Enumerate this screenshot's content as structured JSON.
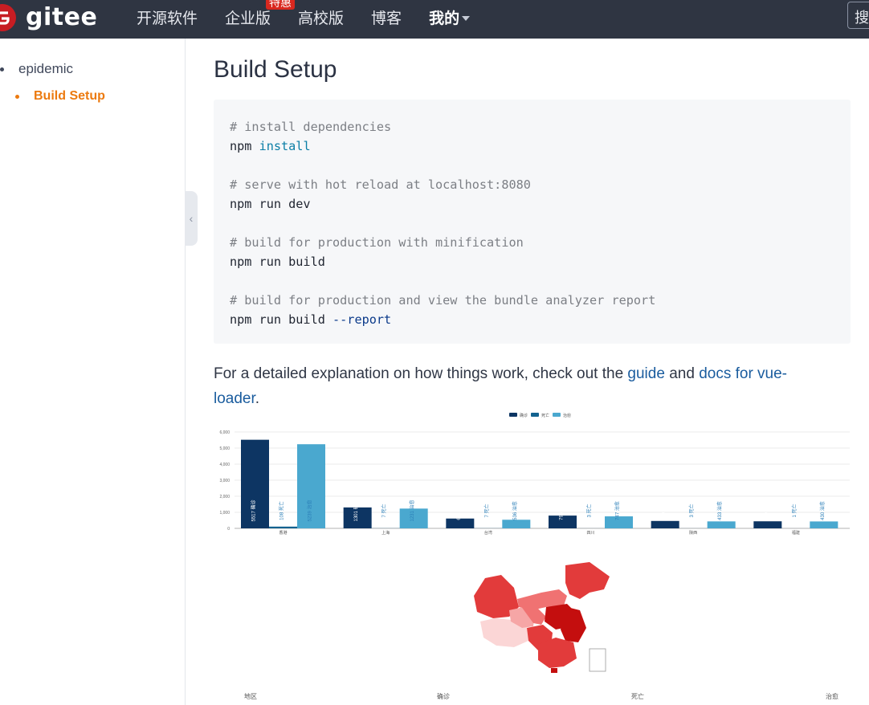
{
  "header": {
    "logo_text": "gitee",
    "nav": [
      {
        "label": "开源软件",
        "bold": false,
        "badge": ""
      },
      {
        "label": "企业版",
        "bold": false,
        "badge": "特惠"
      },
      {
        "label": "高校版",
        "bold": false,
        "badge": ""
      },
      {
        "label": "博客",
        "bold": false,
        "badge": ""
      },
      {
        "label": "我的",
        "bold": true,
        "badge": ""
      }
    ],
    "search_label": "搜"
  },
  "sidebar": {
    "root_item": "epidemic",
    "active_item": "Build Setup"
  },
  "main": {
    "title": "Build Setup",
    "code_lines": [
      {
        "type": "comment",
        "text": "# install dependencies"
      },
      {
        "type": "cmd",
        "prefix": "npm ",
        "kw": "install",
        "rest": ""
      },
      {
        "type": "blank"
      },
      {
        "type": "comment",
        "text": "# serve with hot reload at localhost:8080"
      },
      {
        "type": "cmd",
        "prefix": "npm run dev",
        "kw": "",
        "rest": ""
      },
      {
        "type": "blank"
      },
      {
        "type": "comment",
        "text": "# build for production with minification"
      },
      {
        "type": "cmd",
        "prefix": "npm run build",
        "kw": "",
        "rest": ""
      },
      {
        "type": "blank"
      },
      {
        "type": "comment",
        "text": "# build for production and view the bundle analyzer report"
      },
      {
        "type": "cmd",
        "prefix": "npm run build ",
        "kw": "",
        "rest": "--report"
      }
    ],
    "para_before": "For a detailed explanation on how things work, check out the ",
    "link_guide": "guide",
    "para_mid": " and ",
    "link_docs": "docs for vue-loader",
    "para_after": "."
  },
  "chart_data": {
    "type": "bar",
    "categories": [
      "香港",
      "上海",
      "台湾",
      "四川",
      "陕西",
      "福建"
    ],
    "series": [
      {
        "name": "确诊",
        "values": [
          5517,
          1301,
          611,
          795,
          460,
          439
        ],
        "color": "#0d3563"
      },
      {
        "name": "死亡",
        "values": [
          108,
          7,
          7,
          3,
          3,
          1
        ],
        "color": "#12628f"
      },
      {
        "name": "治愈",
        "values": [
          5239,
          1231,
          536,
          747,
          433,
          430
        ],
        "color": "#4aa8cf"
      }
    ],
    "yticks": [
      "0",
      "1,000",
      "2,000",
      "3,000",
      "4,000",
      "5,000",
      "6,000"
    ],
    "ylim": [
      0,
      6000
    ],
    "legend_position": "top-center"
  },
  "map_colors": [
    "#c40e0e",
    "#e23b3b",
    "#f07272",
    "#f6a6a6",
    "#fbd6d6"
  ],
  "bottom_labels": [
    "地区",
    "确诊",
    "死亡",
    "治愈"
  ]
}
